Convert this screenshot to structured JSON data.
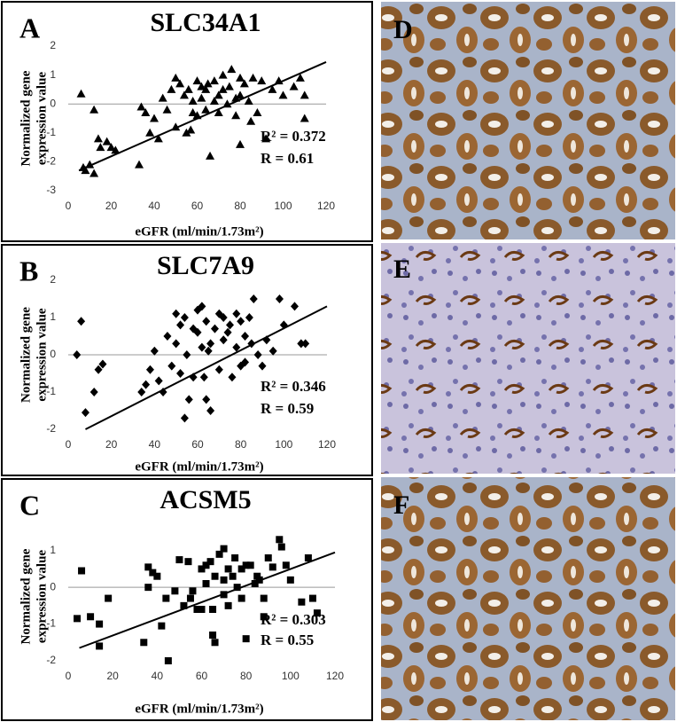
{
  "chart_data": [
    {
      "type": "scatter",
      "panel": "A",
      "title": "SLC34A1",
      "ylabel": [
        "Normalized gene",
        "expression value"
      ],
      "xlabel": "eGFR (ml/min/1.73m²)",
      "annotations": [
        "R² = 0.372",
        "R = 0.61"
      ],
      "marker": "triangle",
      "color": "#000000",
      "xlim": [
        0,
        120
      ],
      "xticks": [
        0,
        20,
        40,
        60,
        80,
        100,
        120
      ],
      "ylim": [
        -3,
        2
      ],
      "yticks": [
        -3,
        -2,
        -1,
        0,
        1,
        2
      ],
      "trendline": {
        "x": [
          5,
          120
        ],
        "y": [
          -2.3,
          1.45
        ]
      },
      "x": [
        6,
        8,
        10,
        12,
        12,
        14,
        15,
        18,
        20,
        22,
        7,
        34,
        36,
        38,
        40,
        42,
        44,
        46,
        48,
        50,
        50,
        52,
        54,
        55,
        56,
        58,
        58,
        60,
        60,
        62,
        62,
        64,
        64,
        65,
        66,
        68,
        68,
        70,
        70,
        72,
        72,
        74,
        75,
        76,
        78,
        78,
        80,
        80,
        82,
        84,
        85,
        86,
        88,
        90,
        92,
        95,
        98,
        100,
        105,
        108,
        110,
        110,
        33,
        57,
        80
      ],
      "values": [
        0.35,
        -2.3,
        -2.1,
        -2.4,
        -0.2,
        -1.2,
        -1.5,
        -1.3,
        -1.5,
        -1.6,
        -2.2,
        -0.1,
        -0.3,
        -1.0,
        -0.5,
        -1.2,
        0.2,
        -0.2,
        0.5,
        0.9,
        -0.8,
        0.7,
        0.3,
        -1.0,
        0.5,
        -0.3,
        0.1,
        0.8,
        -0.4,
        0.6,
        0.2,
        0.5,
        -0.2,
        0.7,
        -1.8,
        0.8,
        0.1,
        0.3,
        -0.3,
        1.0,
        0.5,
        0.0,
        0.6,
        1.2,
        0.2,
        -0.4,
        0.9,
        0.3,
        0.7,
        0.1,
        -0.6,
        0.9,
        -0.3,
        0.8,
        -1.2,
        0.5,
        0.8,
        0.3,
        0.6,
        0.9,
        0.3,
        -0.5,
        -2.1,
        -0.9,
        -1.4
      ]
    },
    {
      "type": "scatter",
      "panel": "B",
      "title": "SLC7A9",
      "ylabel": [
        "Normalized gene",
        "expression value"
      ],
      "xlabel": "eGFR (ml/min/1.73m²)",
      "annotations": [
        "R² = 0.346",
        "R = 0.59"
      ],
      "marker": "diamond",
      "color": "#000000",
      "xlim": [
        0,
        120
      ],
      "xticks": [
        0,
        20,
        40,
        60,
        80,
        100,
        120
      ],
      "ylim": [
        -2,
        2
      ],
      "yticks": [
        -2,
        -1,
        0,
        1,
        2
      ],
      "trendline": {
        "x": [
          8,
          120
        ],
        "y": [
          -2,
          1.3
        ]
      },
      "x": [
        4,
        6,
        8,
        12,
        14,
        16,
        34,
        36,
        38,
        40,
        42,
        44,
        46,
        48,
        50,
        50,
        52,
        52,
        54,
        55,
        56,
        58,
        58,
        60,
        60,
        62,
        62,
        63,
        64,
        65,
        66,
        66,
        68,
        70,
        70,
        72,
        72,
        74,
        75,
        76,
        78,
        78,
        80,
        80,
        82,
        82,
        84,
        85,
        86,
        88,
        90,
        92,
        95,
        98,
        100,
        105,
        108,
        110,
        54,
        64
      ],
      "values": [
        0,
        0.9,
        -1.55,
        -1.0,
        -0.4,
        -0.25,
        -1.0,
        -0.8,
        -0.4,
        0.1,
        -0.7,
        -1.0,
        0.5,
        -0.3,
        1.1,
        0.3,
        0.8,
        -0.5,
        -1.7,
        0.0,
        -1.2,
        0.7,
        -0.6,
        1.2,
        0.6,
        1.3,
        0.2,
        -0.6,
        0.9,
        0.1,
        -1.5,
        0.3,
        0.7,
        1.1,
        -0.4,
        1.0,
        0.4,
        0.6,
        0.8,
        -0.6,
        1.1,
        0.2,
        0.9,
        -0.3,
        0.5,
        -0.2,
        1.0,
        0.3,
        1.5,
        0.0,
        -0.3,
        0.4,
        0.1,
        1.5,
        0.8,
        1.3,
        0.3,
        0.3,
        1.0,
        -1.2
      ]
    },
    {
      "type": "scatter",
      "panel": "C",
      "title": "ACSM5",
      "ylabel": [
        "Normalized gene",
        "expression value"
      ],
      "xlabel": "eGFR (ml/min/1.73m²)",
      "annotations": [
        "R² = 0.303",
        "R = 0.55"
      ],
      "marker": "square",
      "color": "#000000",
      "xlim": [
        0,
        120
      ],
      "xticks": [
        0,
        20,
        40,
        60,
        80,
        100,
        120
      ],
      "ylim": [
        -2,
        1.5
      ],
      "yticks": [
        -2,
        -1,
        0,
        1
      ],
      "trendline": {
        "x": [
          5,
          120
        ],
        "y": [
          -1.65,
          0.95
        ]
      },
      "x": [
        4,
        6,
        10,
        14,
        14,
        18,
        34,
        36,
        38,
        40,
        42,
        44,
        45,
        48,
        50,
        52,
        54,
        55,
        56,
        58,
        60,
        60,
        62,
        62,
        64,
        65,
        66,
        66,
        68,
        70,
        70,
        72,
        72,
        74,
        75,
        76,
        78,
        78,
        80,
        80,
        82,
        84,
        85,
        86,
        88,
        90,
        92,
        95,
        96,
        98,
        100,
        105,
        108,
        110,
        112,
        36,
        58,
        70,
        88,
        65
      ],
      "values": [
        -0.85,
        0.45,
        -0.8,
        -1.0,
        -1.6,
        -0.3,
        -1.5,
        0.55,
        0.4,
        0.3,
        -1.05,
        -0.3,
        -2.0,
        -0.1,
        0.75,
        -0.5,
        0.7,
        -0.3,
        -0.1,
        -0.6,
        0.5,
        -0.6,
        0.6,
        0.1,
        0.7,
        -0.6,
        -1.5,
        0.3,
        0.9,
        1.05,
        -0.2,
        0.5,
        -0.5,
        0.3,
        0.8,
        0.0,
        0.5,
        -0.3,
        0.6,
        -1.4,
        0.6,
        0.1,
        0.3,
        0.2,
        -0.3,
        0.8,
        0.55,
        1.3,
        1.1,
        0.6,
        0.2,
        -0.4,
        0.8,
        -0.3,
        -0.7,
        0.0,
        -0.6,
        0.2,
        -0.8,
        -1.3
      ]
    }
  ],
  "images": [
    {
      "label": "D"
    },
    {
      "label": "E"
    },
    {
      "label": "F"
    }
  ]
}
